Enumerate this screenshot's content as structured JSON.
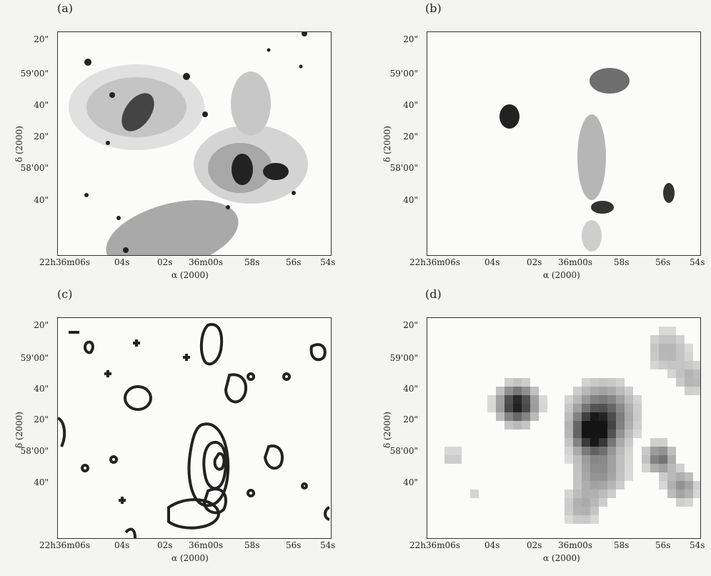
{
  "panels": [
    {
      "label": "(a)",
      "kind": "optical"
    },
    {
      "label": "(b)",
      "kind": "halpha"
    },
    {
      "label": "(c)",
      "kind": "contour"
    },
    {
      "label": "(d)",
      "kind": "pixel"
    }
  ],
  "axes": {
    "x_title": "α (2000)",
    "y_title": "δ (2000)",
    "y_ticks": [
      "20\"",
      "59'00\"",
      "40\"",
      "20\"",
      "58'00\"",
      "40\""
    ],
    "x_ticks": [
      "22h36m06s",
      "04s",
      "02s",
      "36m00s",
      "58s",
      "56s",
      "54s"
    ]
  }
}
